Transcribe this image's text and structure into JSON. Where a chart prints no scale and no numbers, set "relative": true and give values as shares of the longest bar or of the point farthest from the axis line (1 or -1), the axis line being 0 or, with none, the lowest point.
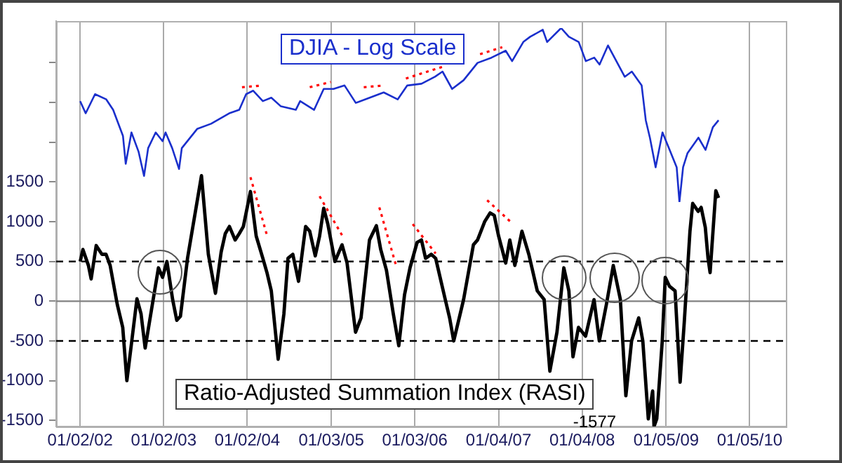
{
  "chart_data": [
    {
      "type": "line",
      "relative": true,
      "legend": false,
      "marker": "none",
      "line_style": "solid",
      "tick_labels": false,
      "xlim": [
        "2001-09-19",
        "2010-06-12"
      ],
      "series": [
        {
          "name": "DJIA - Log Scale",
          "type": "line",
          "color": "#1a2fcc",
          "x": [
            "2002-01-02",
            "2002-01-26",
            "2002-03-08",
            "2002-04-26",
            "2002-05-26",
            "2002-07-08",
            "2002-07-20",
            "2002-08-14",
            "2002-09-14",
            "2002-10-08",
            "2002-10-26",
            "2002-11-28",
            "2002-12-28",
            "2003-01-10",
            "2003-02-08",
            "2003-03-10",
            "2003-03-22",
            "2003-05-28",
            "2003-07-28",
            "2003-10-15",
            "2003-11-28",
            "2003-12-28",
            "2004-01-28",
            "2004-03-10",
            "2004-04-16",
            "2004-05-28",
            "2004-08-01",
            "2004-08-20",
            "2004-10-20",
            "2004-12-01",
            "2005-01-13",
            "2005-03-02",
            "2005-04-20",
            "2005-06-20",
            "2005-08-20",
            "2005-10-20",
            "2005-12-01",
            "2006-02-01",
            "2006-04-01",
            "2006-05-04",
            "2006-06-15",
            "2006-08-04",
            "2006-10-04",
            "2006-12-04",
            "2007-02-04",
            "2007-03-04",
            "2007-04-22",
            "2007-05-22",
            "2007-07-16",
            "2007-08-04",
            "2007-10-04",
            "2007-11-07",
            "2007-12-20",
            "2008-01-20",
            "2008-02-26",
            "2008-03-20",
            "2008-04-26",
            "2008-07-08",
            "2008-08-08",
            "2008-09-20",
            "2008-10-08",
            "2008-10-26",
            "2008-11-20",
            "2008-12-20",
            "2009-01-20",
            "2009-02-20",
            "2009-03-04",
            "2009-03-20",
            "2009-04-08",
            "2009-05-26",
            "2009-06-26",
            "2009-07-28",
            "2009-08-22"
          ],
          "values": [
            0.58,
            0.51,
            0.62,
            0.59,
            0.53,
            0.38,
            0.22,
            0.4,
            0.29,
            0.15,
            0.31,
            0.4,
            0.35,
            0.4,
            0.31,
            0.19,
            0.31,
            0.42,
            0.45,
            0.51,
            0.53,
            0.62,
            0.64,
            0.58,
            0.6,
            0.55,
            0.53,
            0.58,
            0.53,
            0.65,
            0.65,
            0.67,
            0.57,
            0.6,
            0.63,
            0.59,
            0.67,
            0.68,
            0.72,
            0.75,
            0.65,
            0.7,
            0.8,
            0.83,
            0.87,
            0.81,
            0.92,
            0.95,
            0.99,
            0.92,
            1,
            0.95,
            0.92,
            0.81,
            0.83,
            0.79,
            0.9,
            0.72,
            0.75,
            0.67,
            0.47,
            0.37,
            0.2,
            0.4,
            0.3,
            0.2,
            0,
            0.2,
            0.28,
            0.37,
            0.3,
            0.43,
            0.47
          ]
        },
        {
          "type": "line",
          "color": "#ff0000",
          "line_style": "dotted",
          "x": [
            "2003-12-10",
            "2004-03-10"
          ],
          "values": [
            0.66,
            0.67
          ]
        },
        {
          "type": "line",
          "color": "#ff0000",
          "line_style": "dotted",
          "x": [
            "2004-10-01",
            "2005-01-01"
          ],
          "values": [
            0.66,
            0.69
          ]
        },
        {
          "type": "line",
          "color": "#ff0000",
          "line_style": "dotted",
          "x": [
            "2005-05-25",
            "2005-08-20"
          ],
          "values": [
            0.66,
            0.67
          ]
        },
        {
          "type": "line",
          "color": "#ff0000",
          "line_style": "dotted",
          "x": [
            "2005-11-25",
            "2006-05-10"
          ],
          "values": [
            0.71,
            0.78
          ]
        },
        {
          "type": "line",
          "color": "#ff0000",
          "line_style": "dotted",
          "x": [
            "2006-10-15",
            "2007-01-20"
          ],
          "values": [
            0.85,
            0.89
          ]
        }
      ]
    },
    {
      "type": "line",
      "legend": false,
      "grid": "x",
      "marker": "none",
      "line_style": "solid",
      "xlim": [
        "2001-09-19",
        "2010-06-12"
      ],
      "xticks": [
        {
          "value": "2002-01-02",
          "label": "01/02/02"
        },
        {
          "value": "2003-01-02",
          "label": "01/02/03"
        },
        {
          "value": "2004-01-02",
          "label": "01/02/04"
        },
        {
          "value": "2005-01-03",
          "label": "01/03/05"
        },
        {
          "value": "2006-01-03",
          "label": "01/03/06"
        },
        {
          "value": "2007-01-04",
          "label": "01/04/07"
        },
        {
          "value": "2008-01-04",
          "label": "01/04/08"
        },
        {
          "value": "2009-01-05",
          "label": "01/05/09"
        },
        {
          "value": "2010-01-05",
          "label": "01/05/10"
        }
      ],
      "ylim": [
        -1577,
        3525
      ],
      "yticks": [
        -1500,
        -1000,
        -500,
        0,
        500,
        1000,
        1500,
        {
          "value": 2000,
          "label": null
        },
        {
          "value": 2500,
          "label": null
        },
        {
          "value": 3000,
          "label": null
        }
      ],
      "ref_lines": [
        {
          "axis": "y",
          "value": 0,
          "label": null,
          "color": "#808080",
          "line_style": "solid"
        },
        {
          "axis": "y",
          "value": 500,
          "label": null,
          "color": "#000000",
          "line_style": "dashed"
        },
        {
          "axis": "y",
          "value": -500,
          "label": null,
          "color": "#000000",
          "line_style": "dashed"
        }
      ],
      "annotations": [
        {
          "text": "-1577",
          "x": "2008-11-13",
          "y": -1577
        }
      ],
      "series": [
        {
          "name": "Ratio-Adjusted Summation Index (RASI)",
          "type": "line",
          "color": "#000000",
          "x": [
            "2002-01-02",
            "2002-01-14",
            "2002-02-07",
            "2002-02-19",
            "2002-03-13",
            "2002-04-07",
            "2002-04-25",
            "2002-05-13",
            "2002-06-13",
            "2002-07-07",
            "2002-07-25",
            "2002-08-13",
            "2002-09-07",
            "2002-09-25",
            "2002-10-13",
            "2002-11-10",
            "2002-12-10",
            "2002-12-28",
            "2003-01-16",
            "2003-02-10",
            "2003-02-28",
            "2003-03-16",
            "2003-04-16",
            "2003-06-16",
            "2003-07-16",
            "2003-08-16",
            "2003-09-10",
            "2003-09-28",
            "2003-10-16",
            "2003-11-10",
            "2003-11-28",
            "2003-12-16",
            "2004-01-16",
            "2004-02-10",
            "2004-03-10",
            "2004-03-28",
            "2004-04-16",
            "2004-05-16",
            "2004-06-10",
            "2004-06-28",
            "2004-07-19",
            "2004-08-13",
            "2004-09-13",
            "2004-10-01",
            "2004-10-25",
            "2004-11-13",
            "2004-12-01",
            "2004-12-19",
            "2005-01-19",
            "2005-02-19",
            "2005-03-13",
            "2005-04-19",
            "2005-05-13",
            "2005-06-19",
            "2005-07-19",
            "2005-08-07",
            "2005-09-01",
            "2005-10-01",
            "2005-10-25",
            "2005-11-19",
            "2005-12-13",
            "2006-01-13",
            "2006-02-01",
            "2006-02-19",
            "2006-03-16",
            "2006-04-04",
            "2006-05-16",
            "2006-06-04",
            "2006-06-22",
            "2006-08-04",
            "2006-09-16",
            "2006-10-04",
            "2006-11-04",
            "2006-11-28",
            "2006-12-16",
            "2007-01-04",
            "2007-02-04",
            "2007-02-22",
            "2007-03-16",
            "2007-04-16",
            "2007-05-16",
            "2007-06-22",
            "2007-07-22",
            "2007-08-16",
            "2007-09-16",
            "2007-10-16",
            "2007-11-07",
            "2007-11-25",
            "2007-12-19",
            "2008-01-19",
            "2008-02-25",
            "2008-03-19",
            "2008-04-19",
            "2008-05-19",
            "2008-06-19",
            "2008-07-13",
            "2008-08-07",
            "2008-09-07",
            "2008-09-25",
            "2008-10-19",
            "2008-11-07",
            "2008-11-13",
            "2008-11-25",
            "2008-12-19",
            "2009-01-01",
            "2009-01-19",
            "2009-02-13",
            "2009-03-07",
            "2009-03-25",
            "2009-04-19",
            "2009-05-01",
            "2009-05-25",
            "2009-06-07",
            "2009-06-25",
            "2009-07-07",
            "2009-07-16",
            "2009-08-10",
            "2009-08-22"
          ],
          "values": [
            500,
            650,
            450,
            280,
            700,
            590,
            590,
            450,
            -40,
            -330,
            -1000,
            -560,
            30,
            -160,
            -590,
            -100,
            420,
            300,
            500,
            20,
            -240,
            -190,
            540,
            1580,
            590,
            100,
            620,
            850,
            940,
            770,
            850,
            940,
            1380,
            820,
            540,
            360,
            130,
            -730,
            -160,
            540,
            590,
            250,
            940,
            880,
            570,
            820,
            1170,
            970,
            500,
            710,
            480,
            -390,
            -210,
            770,
            950,
            650,
            390,
            -160,
            -560,
            80,
            420,
            740,
            770,
            540,
            590,
            540,
            20,
            -210,
            -500,
            20,
            710,
            770,
            1000,
            1110,
            1080,
            820,
            480,
            770,
            450,
            880,
            590,
            130,
            20,
            -880,
            -390,
            420,
            130,
            -700,
            -330,
            -440,
            20,
            -500,
            -40,
            450,
            20,
            -1190,
            -500,
            -210,
            -500,
            -1480,
            -1130,
            -1577,
            -1480,
            -500,
            300,
            190,
            130,
            -1020,
            -270,
            880,
            1230,
            1130,
            1180,
            930,
            540,
            360,
            1390,
            1300
          ]
        },
        {
          "type": "line",
          "color": "#ff0000",
          "line_style": "dotted",
          "x": [
            "2004-01-16",
            "2004-03-28"
          ],
          "values": [
            1560,
            830
          ]
        },
        {
          "type": "line",
          "color": "#ff0000",
          "line_style": "dotted",
          "x": [
            "2004-11-13",
            "2005-02-19"
          ],
          "values": [
            1320,
            830
          ]
        },
        {
          "type": "line",
          "color": "#ff0000",
          "line_style": "dotted",
          "x": [
            "2005-08-01",
            "2005-10-15"
          ],
          "values": [
            1180,
            430
          ]
        },
        {
          "type": "line",
          "color": "#ff0000",
          "line_style": "dotted",
          "x": [
            "2005-12-25",
            "2006-04-04"
          ],
          "values": [
            970,
            600
          ]
        },
        {
          "type": "line",
          "color": "#ff0000",
          "line_style": "dotted",
          "x": [
            "2006-11-15",
            "2007-02-25"
          ],
          "values": [
            1270,
            1000
          ]
        }
      ]
    }
  ]
}
